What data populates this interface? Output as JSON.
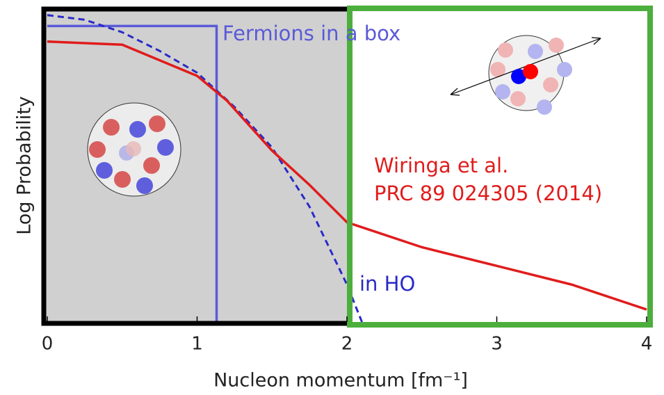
{
  "chart_data": {
    "type": "line",
    "xlabel": "Nucleon momentum [fm⁻¹]",
    "ylabel": "Log Probability",
    "xlim": [
      0,
      4
    ],
    "xticks": [
      0,
      1,
      2,
      3,
      4
    ],
    "ylim": [
      0,
      1
    ],
    "series": [
      {
        "label": "Fermions in a box",
        "color": "#5a5ad8",
        "linestyle": "solid",
        "x": [
          0,
          1.13,
          1.13
        ],
        "values": [
          0.95,
          0.95,
          0
        ]
      },
      {
        "label": "in HO",
        "color": "#2a2ac8",
        "linestyle": "dashed",
        "x": [
          0,
          0.25,
          0.5,
          0.75,
          1,
          1.25,
          1.5,
          1.75,
          2,
          2.1
        ],
        "values": [
          0.985,
          0.97,
          0.93,
          0.87,
          0.8,
          0.69,
          0.56,
          0.37,
          0.12,
          0
        ]
      },
      {
        "label": [
          "Wiringa et al.",
          "PRC 89 024305 (2014)"
        ],
        "color": "#e01c1c",
        "linestyle": "solid",
        "x": [
          0,
          0.5,
          1,
          1.2,
          1.5,
          1.75,
          2,
          2.5,
          3,
          3.5,
          4
        ],
        "values": [
          0.9,
          0.89,
          0.79,
          0.71,
          0.55,
          0.44,
          0.32,
          0.24,
          0.18,
          0.12,
          0.04
        ]
      }
    ]
  }
}
